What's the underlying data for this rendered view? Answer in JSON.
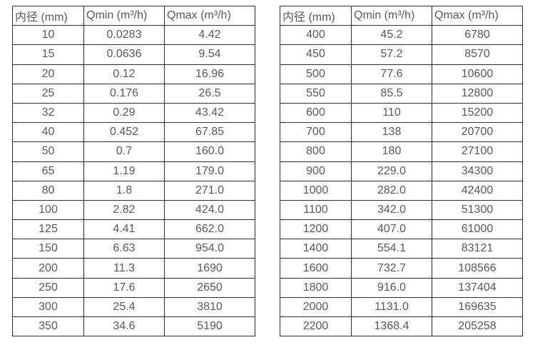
{
  "colors": {
    "background": "#ffffff",
    "border": "#2e2e2e",
    "text": "#595959"
  },
  "tables": [
    {
      "name": "small-diameter-flow-table",
      "headers": [
        "内径 (mm)",
        "Qmin (m³/h)",
        "Qmax (m³/h)"
      ],
      "rows": [
        [
          "10",
          "0.0283",
          "4.42"
        ],
        [
          "15",
          "0.0636",
          "9.54"
        ],
        [
          "20",
          "0.12",
          "16.96"
        ],
        [
          "25",
          "0.176",
          "26.5"
        ],
        [
          "32",
          "0.29",
          "43.42"
        ],
        [
          "40",
          "0.452",
          "67.85"
        ],
        [
          "50",
          "0.7",
          "160.0"
        ],
        [
          "65",
          "1.19",
          "179.0"
        ],
        [
          "80",
          "1.8",
          "271.0"
        ],
        [
          "100",
          "2.82",
          "424.0"
        ],
        [
          "125",
          "4.41",
          "662.0"
        ],
        [
          "150",
          "6.63",
          "954.0"
        ],
        [
          "200",
          "11.3",
          "1690"
        ],
        [
          "250",
          "17.6",
          "2650"
        ],
        [
          "300",
          "25.4",
          "3810"
        ],
        [
          "350",
          "34.6",
          "5190"
        ]
      ]
    },
    {
      "name": "large-diameter-flow-table",
      "headers": [
        "内径 (mm)",
        "Qmin (m³/h)",
        "Qmax (m³/h)"
      ],
      "rows": [
        [
          "400",
          "45.2",
          "6780"
        ],
        [
          "450",
          "57.2",
          "8570"
        ],
        [
          "500",
          "77.6",
          "10600"
        ],
        [
          "550",
          "85.5",
          "12800"
        ],
        [
          "600",
          "110",
          "15200"
        ],
        [
          "700",
          "138",
          "20700"
        ],
        [
          "800",
          "180",
          "27100"
        ],
        [
          "900",
          "229.0",
          "34300"
        ],
        [
          "1000",
          "282.0",
          "42400"
        ],
        [
          "1100",
          "342.0",
          "51300"
        ],
        [
          "1200",
          "407.0",
          "61000"
        ],
        [
          "1400",
          "554.1",
          "83121"
        ],
        [
          "1600",
          "732.7",
          "108566"
        ],
        [
          "1800",
          "916.0",
          "137404"
        ],
        [
          "2000",
          "1131.0",
          "169635"
        ],
        [
          "2200",
          "1368.4",
          "205258"
        ]
      ]
    }
  ]
}
